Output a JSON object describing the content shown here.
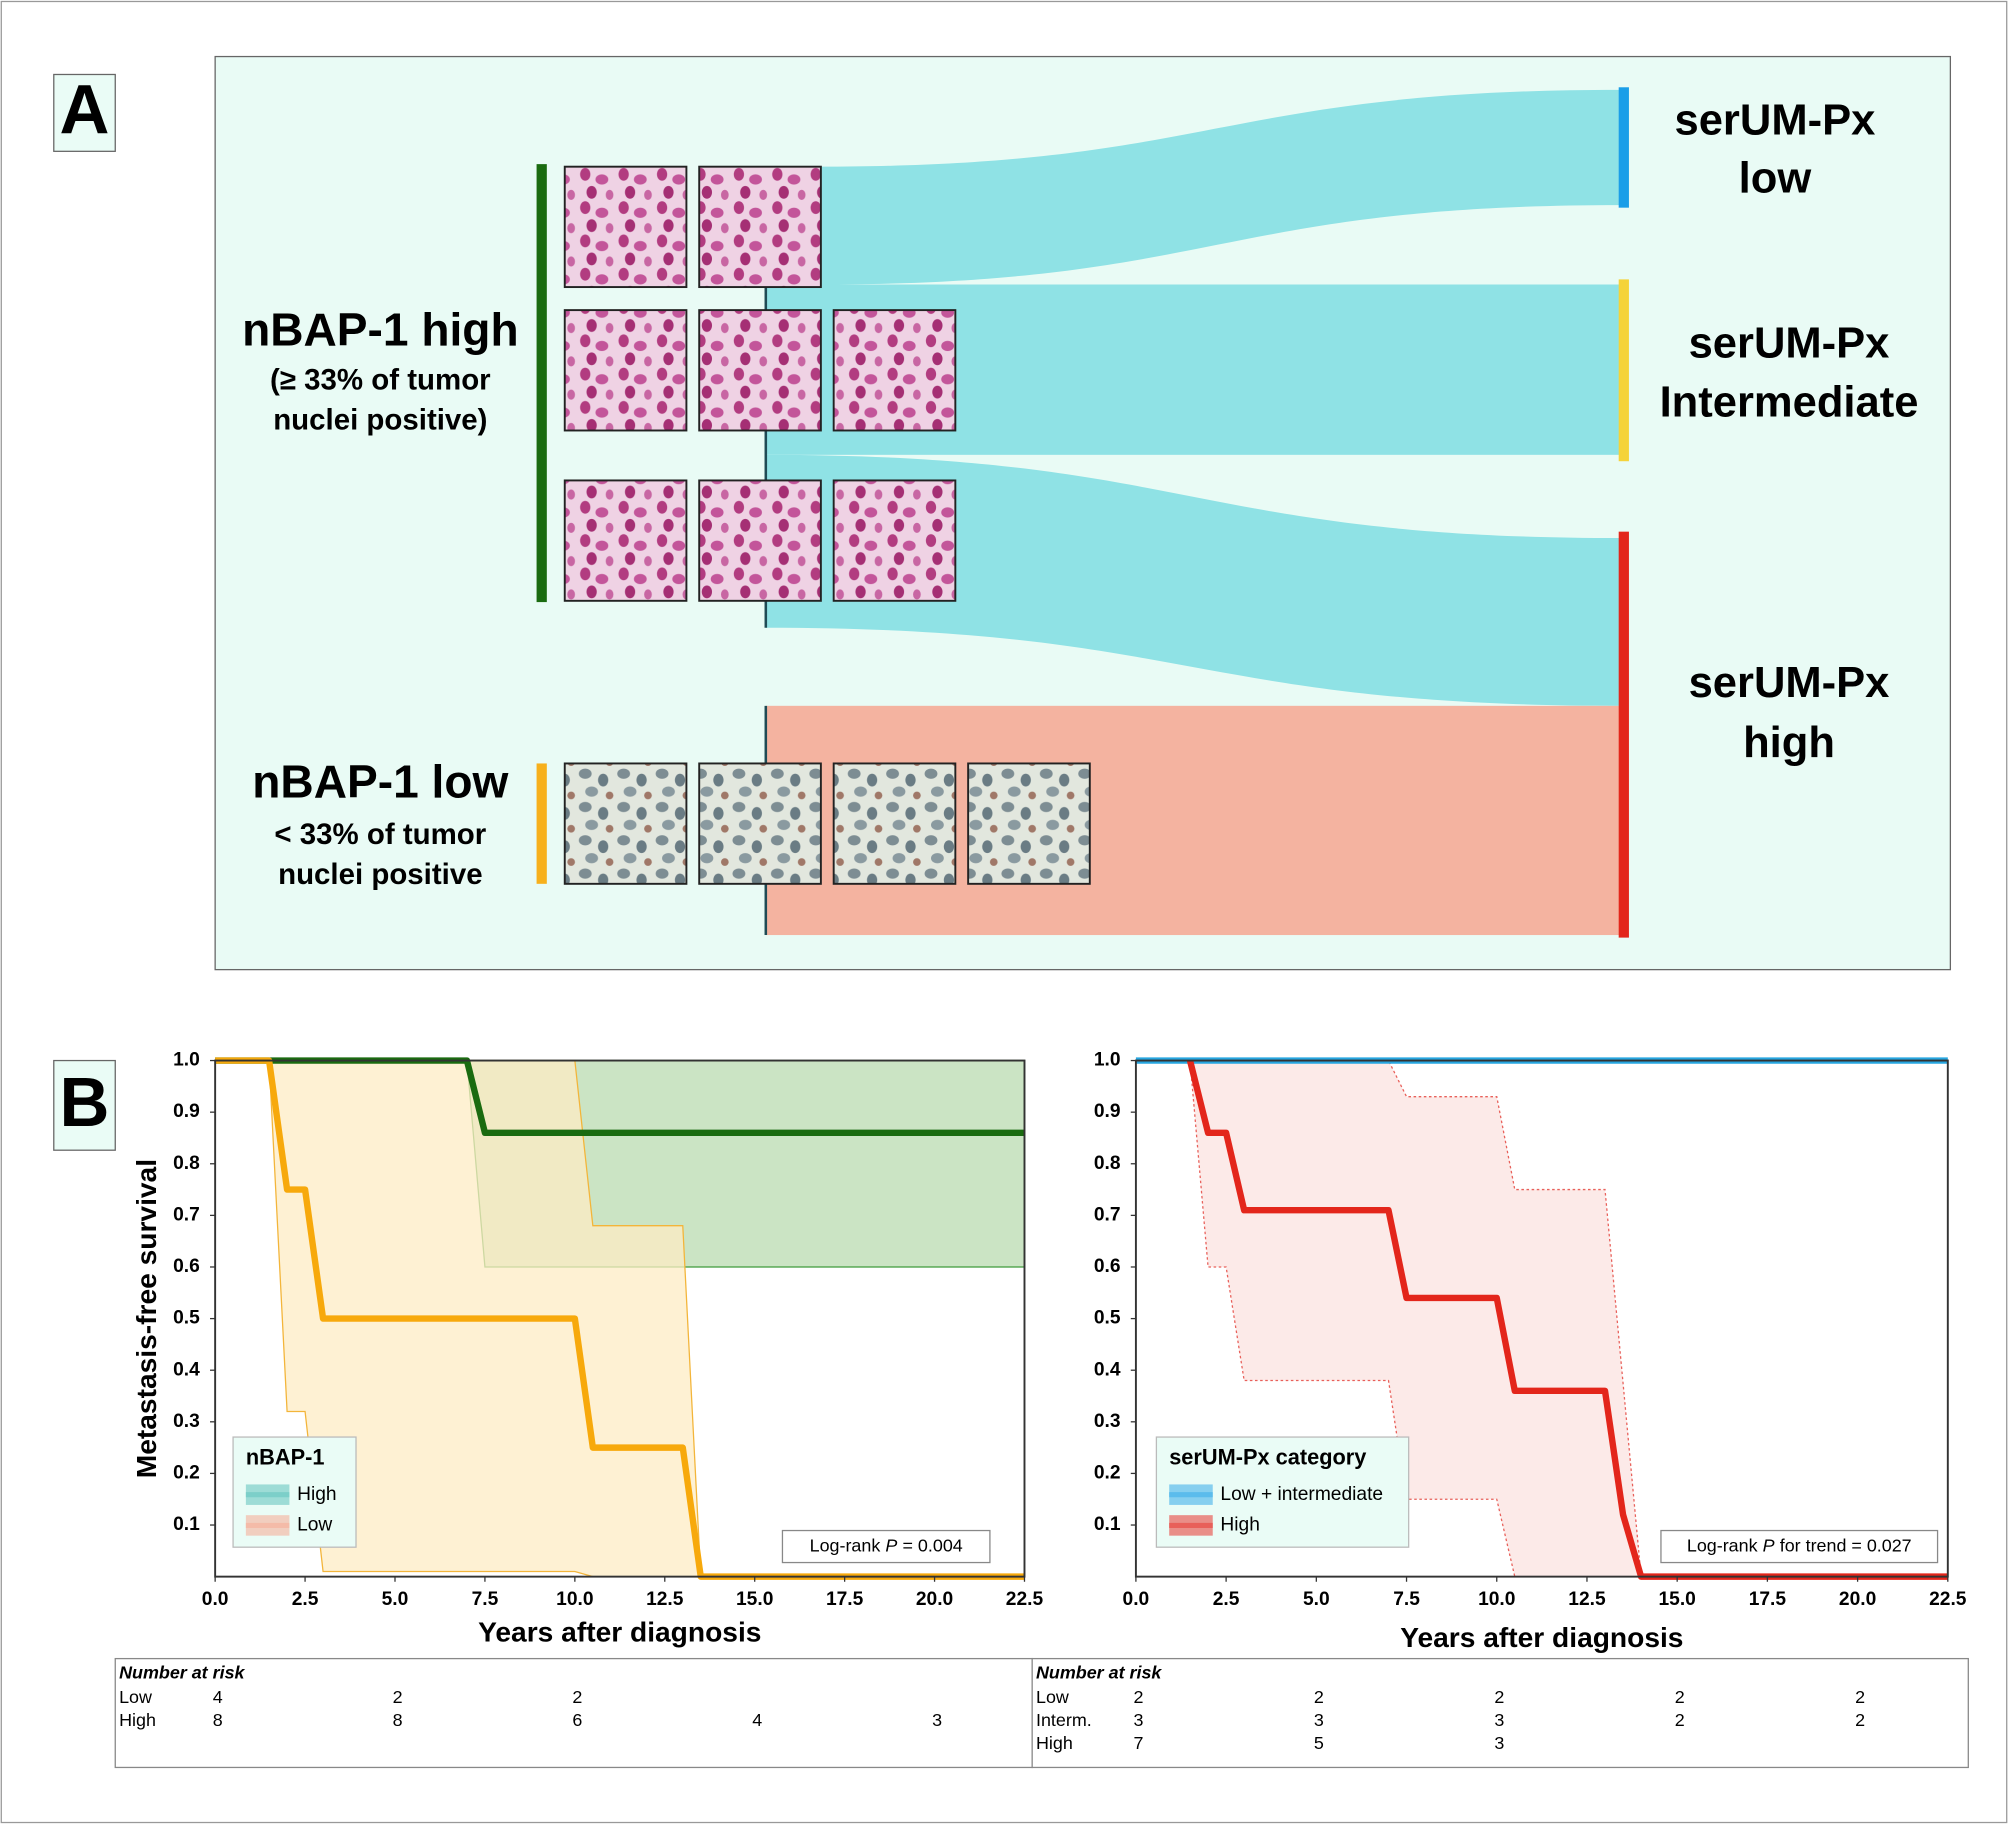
{
  "panel_labels": [
    "A",
    "B"
  ],
  "panel_a": {
    "left_groups": [
      {
        "title": "nBAP-1 high",
        "lines": [
          "(≥ 33% of tumor",
          "nuclei positive)"
        ]
      },
      {
        "title": "nBAP-1 low",
        "lines": [
          "< 33% of tumor",
          "nuclei positive"
        ]
      }
    ],
    "right_groups": [
      {
        "lines": [
          "serUM-Px",
          "low"
        ]
      },
      {
        "lines": [
          "serUM-Px",
          "Intermediate"
        ]
      },
      {
        "lines": [
          "serUM-Px",
          "high"
        ]
      }
    ]
  },
  "chart_data": [
    {
      "type": "line",
      "y_label": "Metastasis-free survival",
      "x_label": "Years after diagnosis",
      "xlim": [
        0,
        22.5
      ],
      "ylim": [
        0,
        1
      ],
      "xticks": [
        {
          "value": 0,
          "label": "0.0"
        },
        2.5,
        {
          "value": 5,
          "label": "5.0"
        },
        7.5,
        {
          "value": 10,
          "label": "10.0"
        },
        12.5,
        {
          "value": 15,
          "label": "15.0"
        },
        17.5,
        {
          "value": 20,
          "label": "20.0"
        },
        22.5
      ],
      "yticks": [
        0.1,
        0.2,
        0.3,
        0.4,
        0.5,
        0.6,
        0.7,
        0.8,
        0.9,
        {
          "value": 1,
          "label": "1.0"
        }
      ],
      "series": [
        {
          "name": "High",
          "color": "#1a6b10",
          "legend_color": "#7ccfc9",
          "x": [
            0,
            7,
            7.5,
            22.5
          ],
          "values": [
            1,
            1,
            0.86,
            0.86
          ],
          "ci": {
            "fill": "#b9dbb0",
            "stroke": "#3f9a3a",
            "x": [
              7,
              7.5,
              22.5
            ],
            "upper": [
              1,
              1,
              1
            ],
            "lower": [
              1,
              0.6,
              0.6
            ]
          }
        },
        {
          "name": "Low",
          "color": "#f7a90c",
          "legend_color": "#f4bba8",
          "x": [
            0,
            1.5,
            2,
            2.5,
            3,
            10,
            10.5,
            13,
            13.5,
            22.5
          ],
          "values": [
            1,
            1,
            0.75,
            0.75,
            0.5,
            0.5,
            0.25,
            0.25,
            0,
            0
          ],
          "ci": {
            "fill": "#fdecc4",
            "stroke": "#f3b53a",
            "x": [
              1.5,
              2,
              2.5,
              3,
              10,
              10.5,
              13,
              13.5
            ],
            "upper": [
              1,
              1,
              1,
              1,
              1,
              0.68,
              0.68,
              0
            ],
            "lower": [
              1,
              0.32,
              0.32,
              0.01,
              0.01,
              0,
              0,
              0
            ]
          }
        }
      ],
      "legend": {
        "title": "nBAP-1",
        "loc": "lower left"
      },
      "annotation": {
        "text": "Log-rank",
        "italic": "P",
        "value": "= 0.004"
      },
      "risk_table": {
        "title": "Number at risk",
        "rows": [
          {
            "label": "Low",
            "counts": [
              4,
              2,
              2
            ]
          },
          {
            "label": "High",
            "counts": [
              8,
              8,
              6,
              4,
              3
            ]
          }
        ]
      }
    },
    {
      "type": "line",
      "x_label": "Years after diagnosis",
      "xlim": [
        0,
        22.5
      ],
      "ylim": [
        0,
        1
      ],
      "xticks": [
        {
          "value": 0,
          "label": "0.0"
        },
        2.5,
        {
          "value": 5,
          "label": "5.0"
        },
        7.5,
        {
          "value": 10,
          "label": "10.0"
        },
        12.5,
        {
          "value": 15,
          "label": "15.0"
        },
        17.5,
        {
          "value": 20,
          "label": "20.0"
        },
        22.5
      ],
      "yticks": [
        0.1,
        0.2,
        0.3,
        0.4,
        0.5,
        0.6,
        0.7,
        0.8,
        0.9,
        {
          "value": 1,
          "label": "1.0"
        }
      ],
      "series": [
        {
          "name": "Low + intermediate",
          "color": "#27a6e0",
          "legend_color": "#5bbcec",
          "x": [
            0,
            22.5
          ],
          "values": [
            1,
            1
          ]
        },
        {
          "name": "High",
          "color": "#e3261b",
          "legend_color": "#e8605a",
          "x": [
            1.5,
            2,
            2.5,
            3,
            7,
            7.5,
            10,
            10.5,
            13,
            13.5,
            14,
            22.5
          ],
          "values": [
            1,
            0.86,
            0.86,
            0.71,
            0.71,
            0.54,
            0.54,
            0.36,
            0.36,
            0.12,
            0,
            0
          ],
          "ci": {
            "fill": "#fbe3e0",
            "stroke": "#e8605a",
            "dotted": true,
            "x": [
              1.5,
              2,
              2.5,
              3,
              7,
              7.5,
              10,
              10.5,
              13,
              14
            ],
            "upper": [
              1,
              1,
              1,
              1,
              1,
              0.93,
              0.93,
              0.75,
              0.75,
              0
            ],
            "lower": [
              1,
              0.6,
              0.6,
              0.38,
              0.38,
              0.15,
              0.15,
              0,
              0,
              0
            ]
          }
        }
      ],
      "legend": {
        "title": "serUM-Px category",
        "loc": "lower left"
      },
      "annotation": {
        "text": "Log-rank",
        "italic": "P",
        "value": "for trend = 0.027"
      },
      "risk_table": {
        "title": "Number at risk",
        "rows": [
          {
            "label": "Low",
            "counts": [
              2,
              2,
              2,
              2,
              2
            ]
          },
          {
            "label": "Interm.",
            "counts": [
              3,
              3,
              3,
              2,
              2
            ]
          },
          {
            "label": "High",
            "counts": [
              7,
              5,
              3
            ]
          }
        ]
      }
    }
  ]
}
